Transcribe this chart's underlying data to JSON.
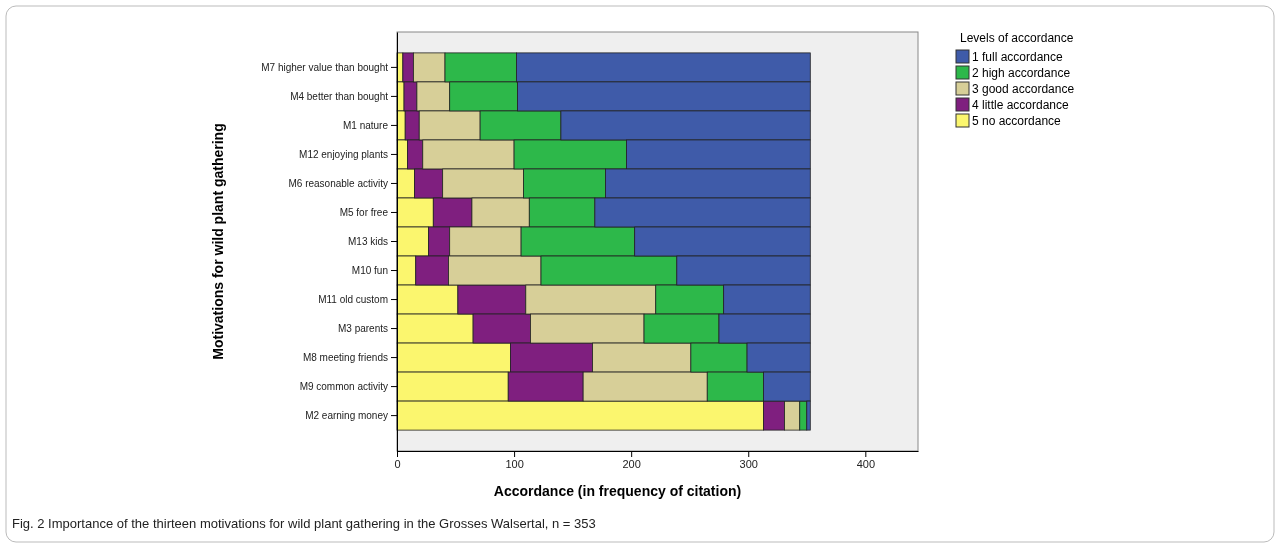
{
  "chart_data": {
    "type": "bar",
    "orientation": "horizontal",
    "stacked": true,
    "xlabel": "Accordance (in frequency of citation)",
    "ylabel": "Motivations for wild plant gathering",
    "legend_title": "Levels of accordance",
    "legend": "top right",
    "annotations": [
      "Fig. 2 Importance of the thirteen motivations for wild plant gathering in the Grosses Walsertal, n = 353"
    ],
    "categories": [
      "M7 higher value than bought",
      "M4 better than bought",
      "M1 nature",
      "M12 enjoying plants",
      "M6 reasonable activity",
      "M5 for free",
      "M13 kids",
      "M10 fun",
      "M11 old custom",
      "M3 parents",
      "M8 meeting friends",
      "M9 common activity",
      "M2 earning money"
    ],
    "xlim": [
      0,
      445
    ],
    "xticks": [
      0,
      100,
      200,
      300,
      400
    ],
    "series": [
      {
        "name": "5 no accordance",
        "color": "#fbf66e",
        "values": [
          5,
          6,
          7,
          9,
          15,
          31,
          27,
          16,
          52,
          65,
          97,
          95,
          313
        ]
      },
      {
        "name": "4 little accordance",
        "color": "#7f1f7f",
        "values": [
          9,
          11,
          12,
          13,
          24,
          33,
          18,
          28,
          58,
          49,
          70,
          64,
          18
        ]
      },
      {
        "name": "3 good accordance",
        "color": "#d7cf98",
        "values": [
          27,
          28,
          52,
          78,
          69,
          49,
          61,
          79,
          111,
          97,
          84,
          106,
          13
        ]
      },
      {
        "name": "2 high accordance",
        "color": "#2db84a",
        "values": [
          61,
          58,
          69,
          96,
          70,
          56,
          97,
          116,
          58,
          64,
          48,
          48,
          6
        ]
      },
      {
        "name": "1 full accordance",
        "color": "#3f5ba9",
        "values": [
          251,
          250,
          213,
          157,
          175,
          184,
          150,
          114,
          74,
          78,
          54,
          40,
          3
        ]
      }
    ]
  }
}
